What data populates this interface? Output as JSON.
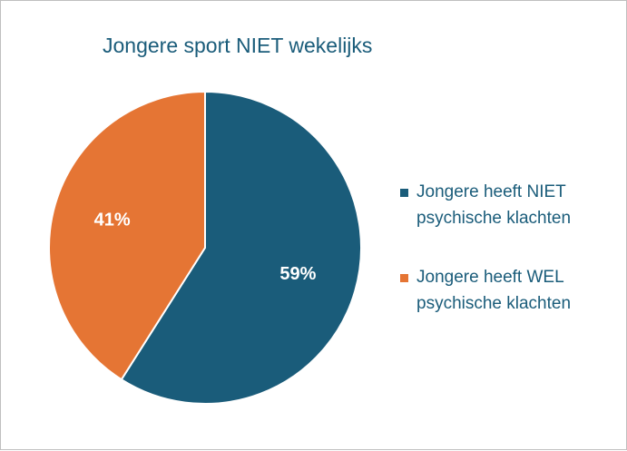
{
  "chart_data": {
    "type": "pie",
    "title": "Jongere sport NIET wekelijks",
    "slices": [
      {
        "label": "Jongere heeft NIET psychische klachten",
        "value": 59,
        "display": "59%",
        "color": "#1a5c7a"
      },
      {
        "label": "Jongere heeft WEL psychische klachten",
        "value": 41,
        "display": "41%",
        "color": "#e57534"
      }
    ],
    "legend_position": "right"
  }
}
